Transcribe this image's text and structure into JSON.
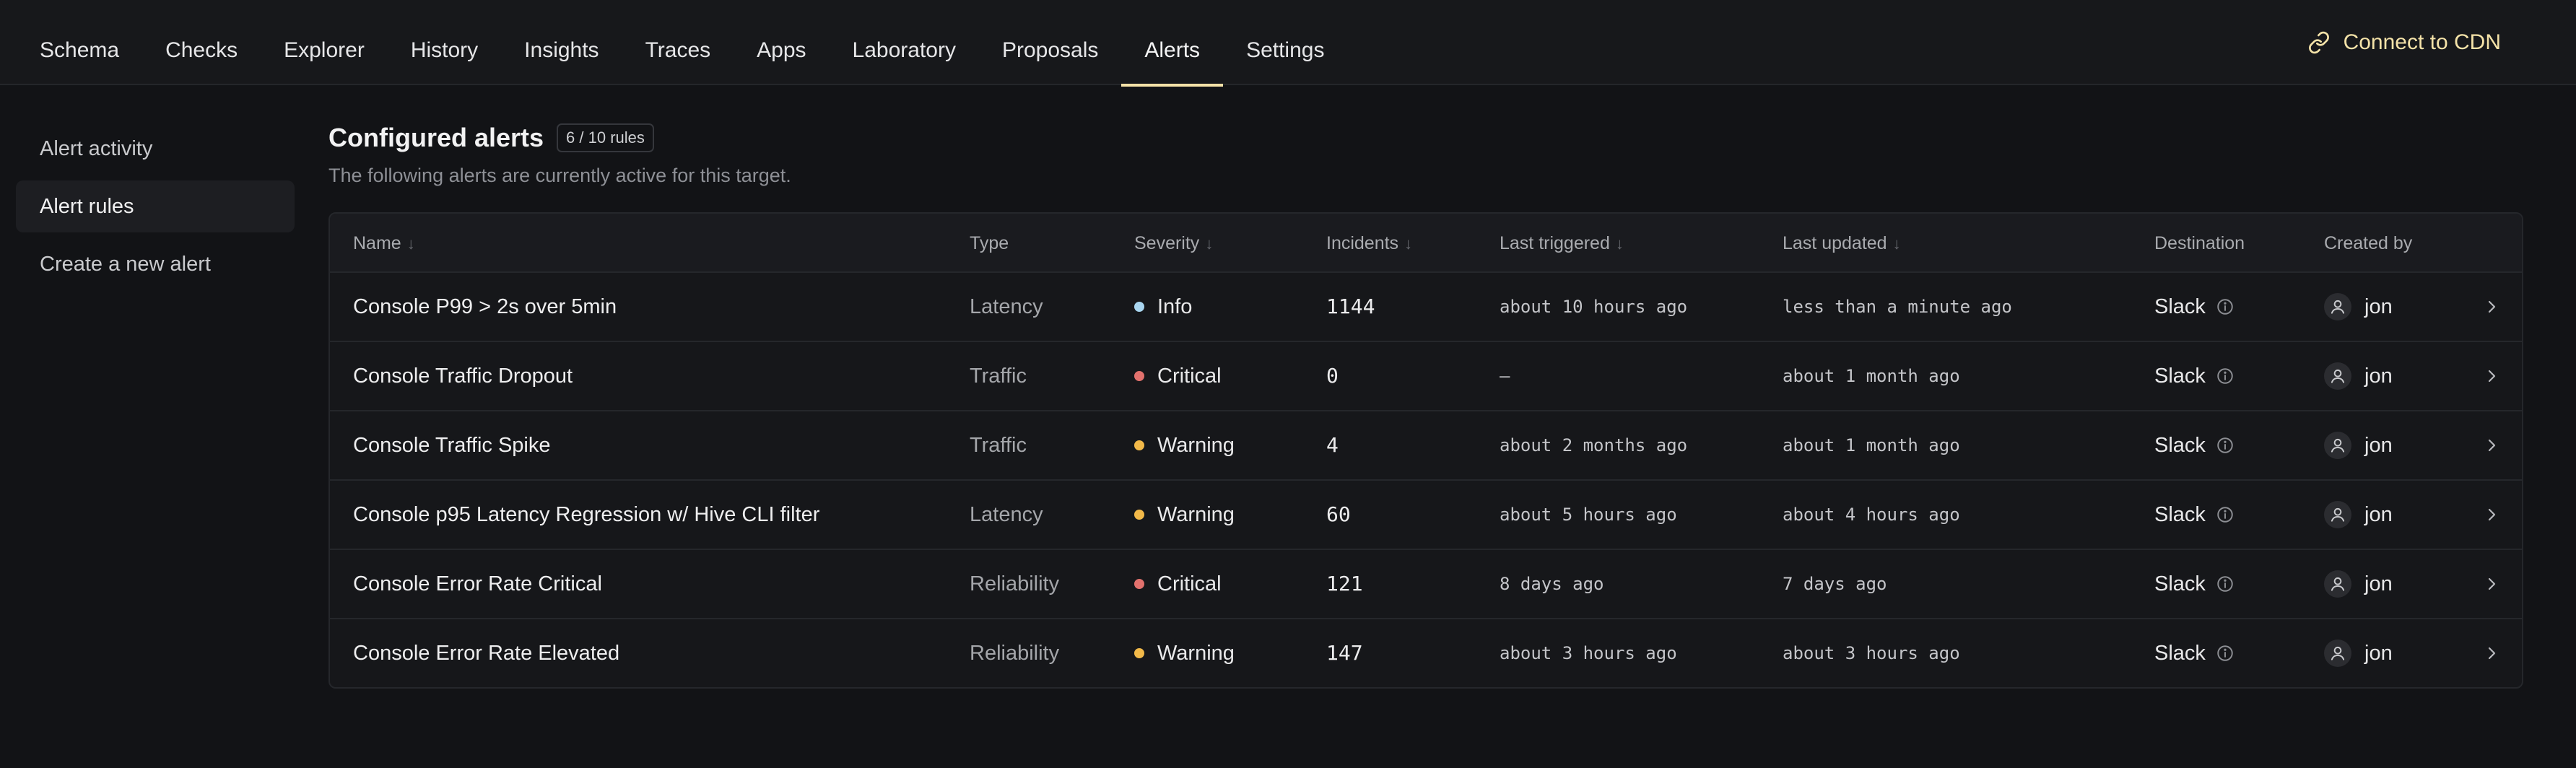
{
  "nav": {
    "tabs": [
      "Schema",
      "Checks",
      "Explorer",
      "History",
      "Insights",
      "Traces",
      "Apps",
      "Laboratory",
      "Proposals",
      "Alerts",
      "Settings"
    ],
    "active_tab": "Alerts",
    "cdn_label": "Connect to CDN",
    "accent_color": "#f4e2a8"
  },
  "sidebar": {
    "items": [
      "Alert activity",
      "Alert rules",
      "Create a new alert"
    ],
    "active": "Alert rules"
  },
  "main": {
    "title": "Configured alerts",
    "count_badge": "6 / 10 rules",
    "subtitle": "The following alerts are currently active for this target."
  },
  "table": {
    "headers": {
      "name": "Name",
      "type": "Type",
      "severity": "Severity",
      "incidents": "Incidents",
      "last_triggered": "Last triggered",
      "last_updated": "Last updated",
      "destination": "Destination",
      "created_by": "Created by"
    },
    "severity_colors": {
      "Info": "#a9d6f0",
      "Critical": "#e2716d",
      "Warning": "#f2b949"
    },
    "rows": [
      {
        "name": "Console P99 > 2s over 5min",
        "type": "Latency",
        "severity": "Info",
        "incidents": "1144",
        "last_triggered": "about 10 hours ago",
        "last_updated": "less than a minute ago",
        "destination": "Slack",
        "created_by": "jon"
      },
      {
        "name": "Console Traffic Dropout",
        "type": "Traffic",
        "severity": "Critical",
        "incidents": "0",
        "last_triggered": "—",
        "last_updated": "about 1 month ago",
        "destination": "Slack",
        "created_by": "jon"
      },
      {
        "name": "Console Traffic Spike",
        "type": "Traffic",
        "severity": "Warning",
        "incidents": "4",
        "last_triggered": "about 2 months ago",
        "last_updated": "about 1 month ago",
        "destination": "Slack",
        "created_by": "jon"
      },
      {
        "name": "Console p95 Latency Regression w/ Hive CLI filter",
        "type": "Latency",
        "severity": "Warning",
        "incidents": "60",
        "last_triggered": "about 5 hours ago",
        "last_updated": "about 4 hours ago",
        "destination": "Slack",
        "created_by": "jon"
      },
      {
        "name": "Console Error Rate Critical",
        "type": "Reliability",
        "severity": "Critical",
        "incidents": "121",
        "last_triggered": "8 days ago",
        "last_updated": "7 days ago",
        "destination": "Slack",
        "created_by": "jon"
      },
      {
        "name": "Console Error Rate Elevated",
        "type": "Reliability",
        "severity": "Warning",
        "incidents": "147",
        "last_triggered": "about 3 hours ago",
        "last_updated": "about 3 hours ago",
        "destination": "Slack",
        "created_by": "jon"
      }
    ]
  },
  "icons": {
    "cdn": "link-icon",
    "sort": "arrow-down-icon",
    "destination_info": "info-icon",
    "avatar": "user-icon",
    "row_open": "chevron-right-icon"
  }
}
